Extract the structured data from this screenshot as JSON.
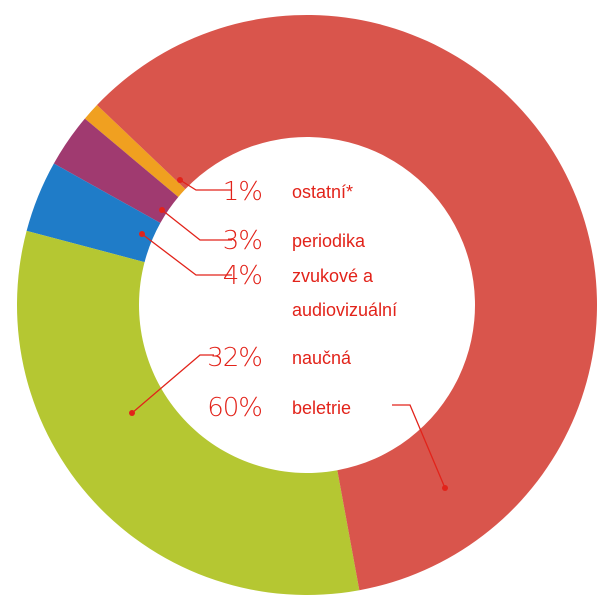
{
  "chart_data": {
    "type": "donut",
    "categories": [
      "ostatní*",
      "periodika",
      "zvukové a audiovizuální",
      "naučná",
      "beletrie"
    ],
    "values": [
      1,
      3,
      4,
      32,
      60
    ],
    "value_labels": [
      "1%",
      "3%",
      "4%",
      "32%",
      "60%"
    ],
    "colors": [
      "#f0a020",
      "#a03a70",
      "#1f7cc8",
      "#b5c732",
      "#d9554c"
    ]
  }
}
